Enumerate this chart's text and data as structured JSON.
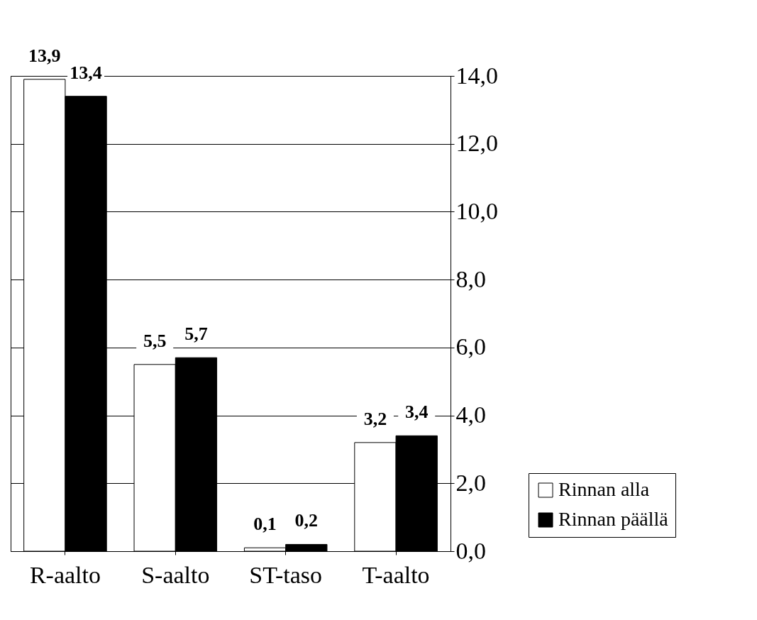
{
  "chart_data": {
    "type": "bar",
    "categories": [
      "R-aalto",
      "S-aalto",
      "ST-taso",
      "T-aalto"
    ],
    "series": [
      {
        "name": "Rinnan alla",
        "color": "#ffffff",
        "values": [
          13.9,
          5.5,
          0.1,
          3.2
        ],
        "value_labels": [
          "13,9",
          "5,5",
          "0,1",
          "3,2"
        ]
      },
      {
        "name": "Rinnan päällä",
        "color": "#000000",
        "values": [
          13.4,
          5.7,
          0.2,
          3.4
        ],
        "value_labels": [
          "13,4",
          "5,7",
          "0,2",
          "3,4"
        ]
      }
    ],
    "ylim": [
      0,
      14
    ],
    "yticks": [
      {
        "value": 0,
        "label": "0,0"
      },
      {
        "value": 2,
        "label": "2,0"
      },
      {
        "value": 4,
        "label": "4,0"
      },
      {
        "value": 6,
        "label": "6,0"
      },
      {
        "value": 8,
        "label": "8,0"
      },
      {
        "value": 10,
        "label": "10,0"
      },
      {
        "value": 12,
        "label": "12,0"
      },
      {
        "value": 14,
        "label": "14,0"
      }
    ],
    "grid": "y",
    "legend": "bottom right"
  }
}
